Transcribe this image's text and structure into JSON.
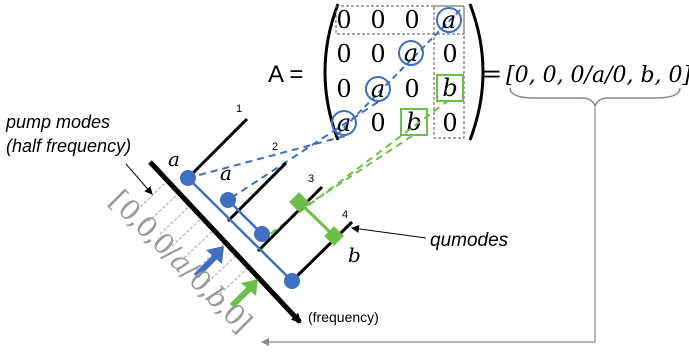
{
  "equation": {
    "lhs": "A =",
    "equals": "=",
    "vector": "[0, 0, 0/a/0, b, 0]"
  },
  "matrix": {
    "rows": [
      [
        "0",
        "0",
        "0",
        "a"
      ],
      [
        "0",
        "0",
        "a",
        "0"
      ],
      [
        "0",
        "a",
        "0",
        "b"
      ],
      [
        "a",
        "0",
        "b",
        "0"
      ]
    ]
  },
  "labels": {
    "pump_modes_line1": "pump modes",
    "pump_modes_line2": "(half frequency)",
    "qumodes": "qumodes",
    "frequency": "(frequency)",
    "a_left": "a",
    "a_middle": "a",
    "b_right": "b"
  },
  "mode_numbers": [
    "1",
    "2",
    "3",
    "4"
  ],
  "diagonal_vector": [
    "[",
    "0",
    ",",
    "0",
    ",",
    "0",
    "/",
    "a",
    "/",
    "0",
    ",",
    "b",
    ",",
    "0",
    "]"
  ],
  "colors": {
    "blue": "#3f6fc0",
    "green": "#6cc04a",
    "black": "#000000",
    "gray": "#a0a0a0"
  }
}
